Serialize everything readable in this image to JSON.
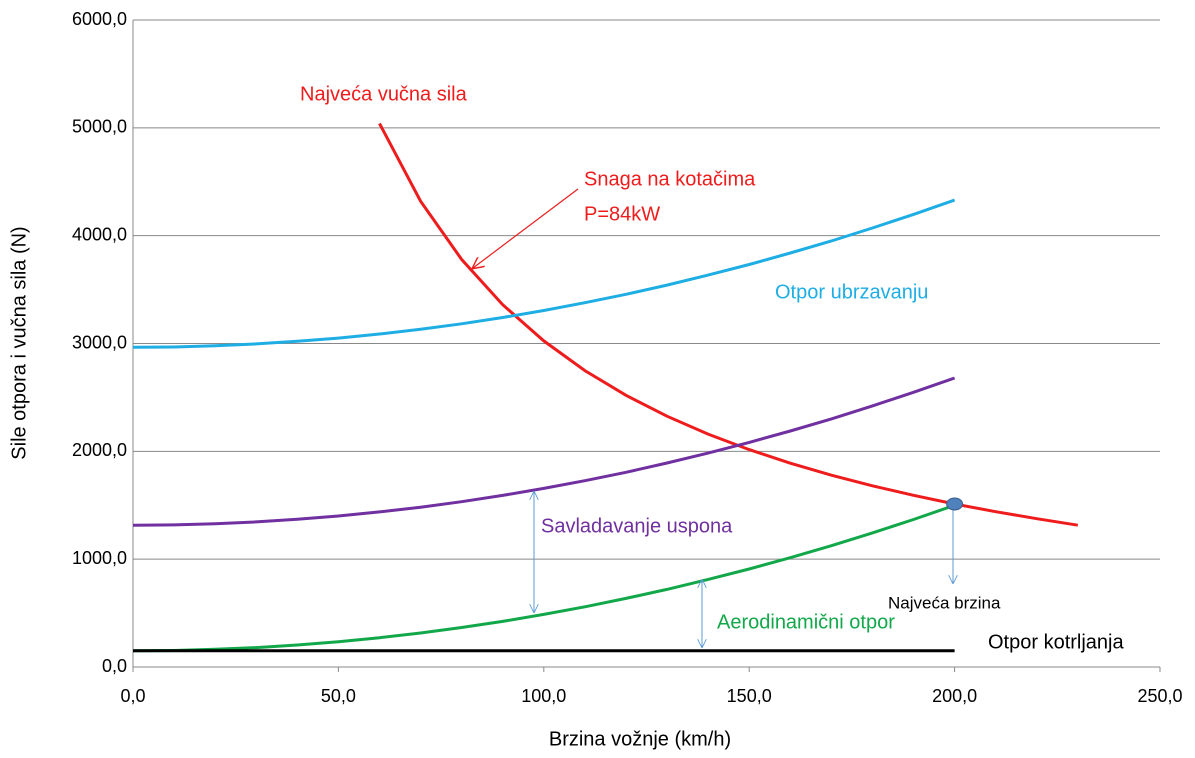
{
  "chart_data": {
    "type": "line",
    "x_label": "Brzina vožnje (km/h)",
    "y_label": "Sile otpora i vučna sila (N)",
    "xlim": [
      0,
      250
    ],
    "xticks": [
      {
        "value": 0,
        "label": "0,0"
      },
      {
        "value": 50,
        "label": "50,0"
      },
      {
        "value": 100,
        "label": "100,0"
      },
      {
        "value": 150,
        "label": "150,0"
      },
      {
        "value": 200,
        "label": "200,0"
      },
      {
        "value": 250,
        "label": "250,0"
      }
    ],
    "ylim": [
      0,
      6000
    ],
    "yticks": [
      {
        "value": 0,
        "label": "0,0"
      },
      {
        "value": 1000,
        "label": "1000,0"
      },
      {
        "value": 2000,
        "label": "2000,0"
      },
      {
        "value": 3000,
        "label": "3000,0"
      },
      {
        "value": 4000,
        "label": "4000,0"
      },
      {
        "value": 5000,
        "label": "5000,0"
      },
      {
        "value": 6000,
        "label": "6000,0"
      }
    ],
    "grid": true,
    "series": [
      {
        "name": "Najveća vučna sila",
        "color": "#ee1c1c",
        "x": [
          60,
          70,
          80,
          90,
          100,
          110,
          120,
          130,
          140,
          150,
          160,
          170,
          180,
          190,
          200,
          210,
          220,
          230
        ],
        "values": [
          5040,
          4320,
          3780,
          3360,
          3024,
          2749,
          2520,
          2326,
          2160,
          2016,
          1890,
          1779,
          1680,
          1592,
          1512,
          1440,
          1375,
          1315
        ]
      },
      {
        "name": "Otpor ubrzavanju",
        "color": "#1eaee4",
        "x": [
          0,
          10,
          20,
          30,
          40,
          50,
          60,
          70,
          80,
          90,
          100,
          110,
          120,
          130,
          140,
          150,
          160,
          170,
          180,
          190,
          200
        ],
        "values": [
          2965,
          2968,
          2979,
          2996,
          3020,
          3050,
          3088,
          3132,
          3183,
          3241,
          3306,
          3378,
          3456,
          3542,
          3634,
          3733,
          3839,
          3951,
          4071,
          4197,
          4330
        ]
      },
      {
        "name": "Savladavanje uspona",
        "color": "#7030a0",
        "x": [
          0,
          10,
          20,
          30,
          40,
          50,
          60,
          70,
          80,
          90,
          100,
          110,
          120,
          130,
          140,
          150,
          160,
          170,
          180,
          190,
          200
        ],
        "values": [
          1315,
          1318,
          1329,
          1346,
          1370,
          1400,
          1438,
          1482,
          1533,
          1591,
          1656,
          1728,
          1806,
          1892,
          1984,
          2083,
          2189,
          2301,
          2421,
          2547,
          2680
        ]
      },
      {
        "name": "Aerodinamični otpor",
        "color": "#12a84a",
        "x": [
          0,
          10,
          20,
          30,
          40,
          50,
          60,
          70,
          80,
          90,
          100,
          110,
          120,
          130,
          140,
          150,
          160,
          170,
          180,
          190,
          200
        ],
        "values": [
          150,
          153,
          164,
          180,
          204,
          234,
          272,
          315,
          366,
          423,
          488,
          558,
          636,
          720,
          812,
          909,
          1014,
          1125,
          1244,
          1368,
          1500
        ]
      },
      {
        "name": "Otpor kotrljanja",
        "color": "#000000",
        "x": [
          0,
          10,
          20,
          30,
          40,
          50,
          60,
          70,
          80,
          90,
          100,
          110,
          120,
          130,
          140,
          150,
          160,
          170,
          180,
          190,
          200
        ],
        "values": [
          150,
          150,
          150,
          150,
          150,
          150,
          150,
          150,
          150,
          150,
          150,
          150,
          150,
          150,
          150,
          150,
          150,
          150,
          150,
          150,
          150
        ]
      }
    ],
    "annotations": [
      "Snaga na kotačima",
      "P=84kW",
      "Najveća brzina"
    ]
  }
}
